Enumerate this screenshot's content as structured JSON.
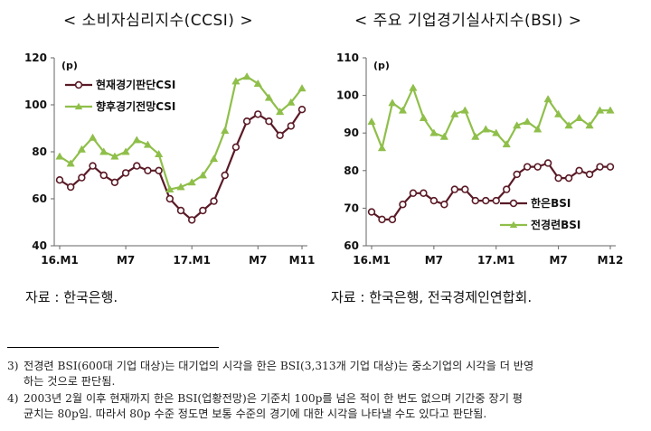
{
  "chart_data": [
    {
      "type": "line",
      "title": "< 소비자심리지수(CCSI) >",
      "unit_label": "(p)",
      "x_tick_labels": [
        {
          "label": "16.M1",
          "index": 0
        },
        {
          "label": "M7",
          "index": 6
        },
        {
          "label": "17.M1",
          "index": 12
        },
        {
          "label": "M7",
          "index": 18
        },
        {
          "label": "M11",
          "index": 22
        }
      ],
      "ylim": [
        40,
        120
      ],
      "yticks": [
        40,
        60,
        80,
        100,
        120
      ],
      "grid": false,
      "legend_position": "top-left",
      "series": [
        {
          "name": "현재경기판단CSI",
          "color": "#5a1a26",
          "marker": "circle",
          "values": [
            68,
            65,
            69,
            74,
            70,
            67,
            71,
            74,
            72,
            72,
            60,
            55,
            51,
            55,
            59,
            70,
            82,
            93,
            96,
            93,
            87,
            91,
            98
          ]
        },
        {
          "name": "향후경기전망CSI",
          "color": "#8fbf4a",
          "marker": "triangle",
          "values": [
            78,
            75,
            81,
            86,
            80,
            78,
            80,
            85,
            83,
            79,
            64,
            65,
            67,
            70,
            77,
            89,
            110,
            112,
            109,
            103,
            97,
            101,
            107
          ]
        }
      ]
    },
    {
      "type": "line",
      "title": "< 주요 기업경기실사지수(BSI) >",
      "unit_label": "(p)",
      "x_tick_labels": [
        {
          "label": "16.M1",
          "index": 0
        },
        {
          "label": "M7",
          "index": 6
        },
        {
          "label": "17.M1",
          "index": 12
        },
        {
          "label": "M7",
          "index": 18
        },
        {
          "label": "M12",
          "index": 23
        }
      ],
      "ylim": [
        60,
        110
      ],
      "yticks": [
        60,
        70,
        80,
        90,
        100,
        110
      ],
      "grid": false,
      "legend_position": "bottom-right",
      "series": [
        {
          "name": "한은BSI",
          "color": "#5a1a26",
          "marker": "circle",
          "values": [
            69,
            67,
            67,
            71,
            74,
            74,
            72,
            71,
            75,
            75,
            72,
            72,
            72,
            75,
            79,
            81,
            81,
            82,
            78,
            78,
            80,
            79,
            81,
            81
          ]
        },
        {
          "name": "전경련BSI",
          "color": "#8fbf4a",
          "marker": "triangle",
          "values": [
            93,
            86,
            98,
            96,
            102,
            94,
            90,
            89,
            95,
            96,
            89,
            91,
            90,
            87,
            92,
            93,
            91,
            99,
            95,
            92,
            94,
            92,
            96,
            96
          ]
        }
      ]
    }
  ],
  "titles": {
    "ccsi": "< 소비자심리지수(CCSI) >",
    "bsi": "< 주요 기업경기실사지수(BSI) >"
  },
  "sources": {
    "ccsi": "자료 : 한국은행.",
    "bsi": "자료 : 한국은행, 전국경제인연합회."
  },
  "notes": {
    "n3_num": "3)",
    "n3_line1": "전경련 BSI(600대 기업 대상)는 대기업의 시각을 한은 BSI(3,313개 기업 대상)는 중소기업의 시각을 더 반영",
    "n3_line2": "하는 것으로 판단됨.",
    "n4_num": "4)",
    "n4_line1": "2003년 2월 이후 현재까지 한은 BSI(업황전망)은 기준치 100p를 넘은 적이 한 번도 없으며 기간중 장기 평",
    "n4_line2": "균치는 80p임. 따라서 80p 수준 정도면 보통 수준의 경기에 대한 시각을 나타낼 수도 있다고 판단됨."
  }
}
